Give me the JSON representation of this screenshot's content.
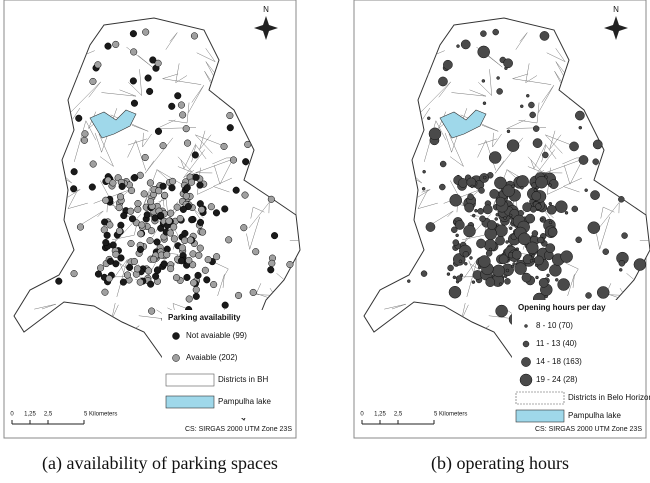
{
  "panels": [
    {
      "north": "N",
      "legend": {
        "title": "Parking availability",
        "items": [
          "Not avaiable (99)",
          "Avaiable (202)",
          "Districts in BH",
          "Pampulha lake"
        ]
      },
      "scale": [
        "0",
        "1,25",
        "2,5",
        "5 Kilometers"
      ],
      "crs": "CS: SIRGAS 2000 UTM Zone 23S",
      "caption": "(a) availability of parking spaces"
    },
    {
      "north": "N",
      "legend": {
        "title": "Opening hours per day",
        "items": [
          "8 - 10 (70)",
          "11 - 13 (40)",
          "14 - 18 (163)",
          "19 - 24 (28)",
          "Districts in Belo Horizonte",
          "Pampulha lake"
        ]
      },
      "scale": [
        "0",
        "1,25",
        "2,5",
        "5 Kilometers"
      ],
      "crs": "CS: SIRGAS 2000 UTM Zone 23S",
      "caption": "(b) operating hours"
    }
  ]
}
